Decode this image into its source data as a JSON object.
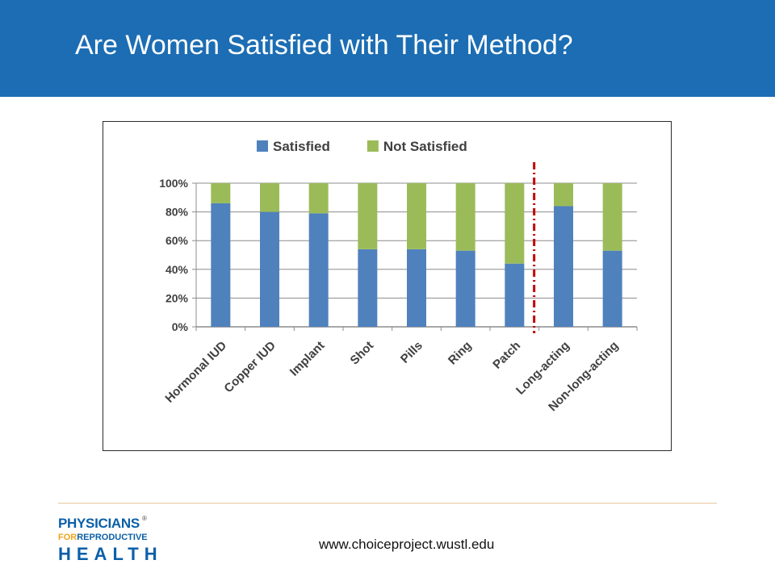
{
  "slide": {
    "title": "Are Women Satisfied with Their Method?",
    "footer_url": "www.choiceproject.wustl.edu",
    "title_bar_color": "#1c6db3"
  },
  "logo": {
    "line1": "PHYSICIANS",
    "line2_for": "FOR",
    "line2_rest": "REPRODUCTIVE",
    "line3": "HEALTH",
    "mark": "®"
  },
  "chart_data": {
    "type": "bar",
    "stacked": true,
    "percent_stacked": true,
    "categories": [
      "Hormonal IUD",
      "Copper IUD",
      "Implant",
      "Shot",
      "Pills",
      "Ring",
      "Patch",
      "Long-acting",
      "Non-long-acting"
    ],
    "series": [
      {
        "name": "Satisfied",
        "color": "#4f81bd",
        "values": [
          86,
          80,
          79,
          54,
          54,
          53,
          44,
          84,
          53
        ]
      },
      {
        "name": "Not Satisfied",
        "color": "#9bbb59",
        "values": [
          14,
          20,
          21,
          46,
          46,
          47,
          56,
          16,
          47
        ]
      }
    ],
    "yticks": [
      "0%",
      "20%",
      "40%",
      "60%",
      "80%",
      "100%"
    ],
    "ylim": [
      0,
      100
    ],
    "grid": true,
    "legend_position": "top",
    "divider": {
      "between": [
        "Patch",
        "Long-acting"
      ],
      "color": "#c00000",
      "style": "dash-dot"
    }
  }
}
